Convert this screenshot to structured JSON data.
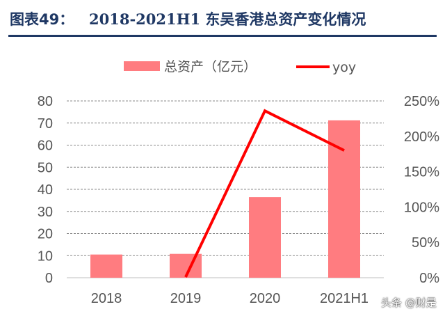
{
  "header": {
    "figure_label": "图表49：",
    "title": "2018-2021H1 东吴香港总资产变化情况"
  },
  "watermark": "头条 @财是",
  "chart_data": {
    "type": "bar",
    "categories": [
      "2018",
      "2019",
      "2020",
      "2021H1"
    ],
    "series": [
      {
        "name": "总资产（亿元）",
        "type": "bar",
        "axis": "left",
        "values": [
          10.5,
          10.8,
          36.5,
          71.2
        ],
        "color": "#ff7c80"
      },
      {
        "name": "yoy",
        "type": "line",
        "axis": "right",
        "values": [
          null,
          0.01,
          2.36,
          1.8
        ],
        "color": "#ff0000"
      }
    ],
    "y_left": {
      "min": 0,
      "max": 80,
      "ticks": [
        "0",
        "10",
        "20",
        "30",
        "40",
        "50",
        "60",
        "70",
        "80"
      ]
    },
    "y_right": {
      "min": 0,
      "max": 2.5,
      "ticks": [
        "0%",
        "50%",
        "100%",
        "150%",
        "200%",
        "250%"
      ]
    },
    "grid": "horizontal-dashed",
    "legend_position": "top-center"
  }
}
